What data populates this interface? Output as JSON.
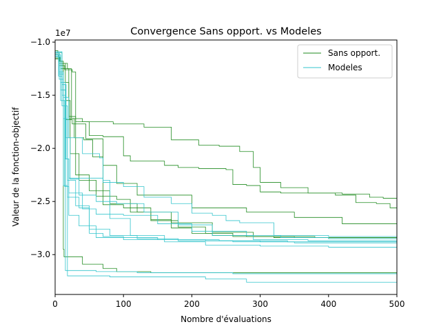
{
  "chart_data": {
    "type": "line",
    "title": "Convergence Sans opport. vs Modeles",
    "xlabel": "Nombre d'évaluations",
    "ylabel": "Valeur de la fonction-objectif",
    "y_offset_label": "1e7",
    "xlim": [
      0,
      500
    ],
    "ylim": [
      -3.375,
      -0.98
    ],
    "xticks": [
      0,
      100,
      200,
      300,
      400,
      500
    ],
    "xtick_labels": [
      "0",
      "100",
      "200",
      "300",
      "400",
      "500"
    ],
    "yticks": [
      -1.0,
      -1.5,
      -2.0,
      -2.5,
      -3.0
    ],
    "ytick_labels": [
      "−1.0",
      "−1.5",
      "−2.0",
      "−2.5",
      "−3.0"
    ],
    "legend_position": "top-right",
    "colors": {
      "sans": "#1e8a1e",
      "modeles": "#31c4cc"
    },
    "series": [
      {
        "group": "sans",
        "name": "Sans opport.",
        "points": [
          [
            0,
            -1.12
          ],
          [
            5,
            -1.18
          ],
          [
            10,
            -1.45
          ],
          [
            15,
            -1.73
          ],
          [
            25,
            -1.77
          ],
          [
            45,
            -1.91
          ],
          [
            70,
            -2.16
          ],
          [
            90,
            -2.33
          ],
          [
            120,
            -2.44
          ],
          [
            200,
            -2.56
          ],
          [
            280,
            -2.6
          ],
          [
            350,
            -2.65
          ],
          [
            420,
            -2.71
          ],
          [
            500,
            -2.83
          ]
        ]
      },
      {
        "group": "sans",
        "name": "Sans opport.",
        "points": [
          [
            0,
            -1.1
          ],
          [
            6,
            -1.22
          ],
          [
            12,
            -1.38
          ],
          [
            20,
            -1.72
          ],
          [
            40,
            -1.75
          ],
          [
            85,
            -1.77
          ],
          [
            130,
            -1.8
          ],
          [
            170,
            -1.92
          ],
          [
            210,
            -1.97
          ],
          [
            240,
            -1.98
          ],
          [
            270,
            -2.03
          ],
          [
            290,
            -2.18
          ],
          [
            300,
            -2.32
          ],
          [
            330,
            -2.37
          ],
          [
            370,
            -2.42
          ],
          [
            410,
            -2.44
          ],
          [
            440,
            -2.51
          ],
          [
            470,
            -2.52
          ],
          [
            490,
            -2.56
          ],
          [
            500,
            -2.56
          ]
        ]
      },
      {
        "group": "sans",
        "name": "Sans opport.",
        "points": [
          [
            0,
            -1.15
          ],
          [
            8,
            -1.22
          ],
          [
            14,
            -1.26
          ],
          [
            25,
            -1.28
          ],
          [
            30,
            -1.75
          ],
          [
            50,
            -1.88
          ],
          [
            70,
            -1.89
          ],
          [
            100,
            -2.07
          ],
          [
            110,
            -2.12
          ],
          [
            160,
            -2.16
          ],
          [
            180,
            -2.18
          ],
          [
            210,
            -2.19
          ],
          [
            250,
            -2.2
          ],
          [
            260,
            -2.34
          ],
          [
            280,
            -2.35
          ],
          [
            300,
            -2.41
          ],
          [
            330,
            -2.42
          ],
          [
            400,
            -2.42
          ],
          [
            420,
            -2.43
          ],
          [
            460,
            -2.46
          ],
          [
            480,
            -2.47
          ],
          [
            500,
            -2.53
          ]
        ]
      },
      {
        "group": "sans",
        "name": "Sans opport.",
        "points": [
          [
            0,
            -1.08
          ],
          [
            4,
            -1.1
          ],
          [
            10,
            -1.2
          ],
          [
            18,
            -1.25
          ],
          [
            24,
            -1.72
          ],
          [
            28,
            -1.9
          ],
          [
            42,
            -1.92
          ],
          [
            55,
            -2.08
          ],
          [
            70,
            -2.53
          ],
          [
            100,
            -2.56
          ],
          [
            140,
            -2.67
          ],
          [
            170,
            -2.75
          ],
          [
            200,
            -2.8
          ],
          [
            230,
            -2.82
          ],
          [
            280,
            -2.83
          ],
          [
            350,
            -2.84
          ],
          [
            500,
            -2.85
          ]
        ]
      },
      {
        "group": "sans",
        "name": "Sans opport.",
        "points": [
          [
            0,
            -1.11
          ],
          [
            6,
            -1.2
          ],
          [
            15,
            -1.55
          ],
          [
            22,
            -2.05
          ],
          [
            35,
            -2.3
          ],
          [
            60,
            -2.45
          ],
          [
            90,
            -2.48
          ],
          [
            110,
            -2.6
          ],
          [
            140,
            -2.68
          ],
          [
            180,
            -2.74
          ],
          [
            220,
            -2.8
          ],
          [
            260,
            -2.83
          ],
          [
            320,
            -2.84
          ],
          [
            400,
            -2.85
          ],
          [
            500,
            -2.86
          ]
        ]
      },
      {
        "group": "sans",
        "name": "Sans opport.",
        "points": [
          [
            0,
            -1.14
          ],
          [
            7,
            -1.18
          ],
          [
            12,
            -2.95
          ],
          [
            13,
            -3.02
          ],
          [
            30,
            -3.02
          ],
          [
            40,
            -3.09
          ],
          [
            70,
            -3.13
          ],
          [
            90,
            -3.16
          ],
          [
            140,
            -3.17
          ],
          [
            190,
            -3.17
          ],
          [
            300,
            -3.17
          ],
          [
            400,
            -3.17
          ],
          [
            500,
            -3.18
          ]
        ]
      },
      {
        "group": "sans",
        "name": "Sans opport.",
        "points": [
          [
            0,
            -1.16
          ],
          [
            8,
            -1.25
          ],
          [
            20,
            -1.7
          ],
          [
            30,
            -2.25
          ],
          [
            50,
            -2.4
          ],
          [
            80,
            -2.52
          ],
          [
            120,
            -2.6
          ],
          [
            170,
            -2.7
          ],
          [
            230,
            -2.79
          ],
          [
            290,
            -2.83
          ],
          [
            380,
            -2.84
          ],
          [
            500,
            -2.84
          ]
        ]
      },
      {
        "group": "modeles",
        "name": "Modeles",
        "points": [
          [
            0,
            -1.13
          ],
          [
            5,
            -1.32
          ],
          [
            10,
            -1.6
          ],
          [
            14,
            -2.36
          ],
          [
            20,
            -2.42
          ],
          [
            40,
            -2.57
          ],
          [
            60,
            -2.62
          ],
          [
            100,
            -2.63
          ],
          [
            150,
            -2.71
          ],
          [
            200,
            -2.78
          ],
          [
            280,
            -2.82
          ],
          [
            330,
            -2.84
          ],
          [
            400,
            -2.85
          ],
          [
            500,
            -2.86
          ]
        ]
      },
      {
        "group": "modeles",
        "name": "Modeles",
        "points": [
          [
            0,
            -1.1
          ],
          [
            6,
            -1.3
          ],
          [
            12,
            -1.72
          ],
          [
            18,
            -2.3
          ],
          [
            30,
            -2.54
          ],
          [
            50,
            -2.76
          ],
          [
            80,
            -2.82
          ],
          [
            120,
            -2.85
          ],
          [
            180,
            -2.87
          ],
          [
            260,
            -2.88
          ],
          [
            350,
            -2.89
          ],
          [
            500,
            -2.89
          ]
        ]
      },
      {
        "group": "modeles",
        "name": "Modeles",
        "points": [
          [
            0,
            -1.12
          ],
          [
            8,
            -1.45
          ],
          [
            15,
            -1.6
          ],
          [
            18,
            -3.2
          ],
          [
            30,
            -3.2
          ],
          [
            80,
            -3.21
          ],
          [
            160,
            -3.21
          ],
          [
            220,
            -3.23
          ],
          [
            280,
            -3.26
          ],
          [
            400,
            -3.26
          ],
          [
            500,
            -3.26
          ]
        ]
      },
      {
        "group": "modeles",
        "name": "Modeles",
        "points": [
          [
            0,
            -1.09
          ],
          [
            10,
            -1.4
          ],
          [
            16,
            -2.1
          ],
          [
            20,
            -2.28
          ],
          [
            70,
            -2.32
          ],
          [
            100,
            -2.36
          ],
          [
            130,
            -2.46
          ],
          [
            170,
            -2.52
          ],
          [
            200,
            -2.61
          ],
          [
            230,
            -2.63
          ],
          [
            250,
            -2.68
          ],
          [
            270,
            -2.7
          ],
          [
            320,
            -2.82
          ],
          [
            400,
            -2.83
          ],
          [
            500,
            -2.83
          ]
        ]
      },
      {
        "group": "modeles",
        "name": "Modeles",
        "points": [
          [
            0,
            -1.14
          ],
          [
            8,
            -1.55
          ],
          [
            14,
            -2.1
          ],
          [
            20,
            -2.63
          ],
          [
            35,
            -2.73
          ],
          [
            60,
            -2.84
          ],
          [
            100,
            -2.86
          ],
          [
            160,
            -2.88
          ],
          [
            220,
            -2.91
          ],
          [
            300,
            -2.92
          ],
          [
            400,
            -2.93
          ],
          [
            500,
            -2.93
          ]
        ]
      },
      {
        "group": "modeles",
        "name": "Modeles",
        "points": [
          [
            0,
            -1.11
          ],
          [
            6,
            -1.35
          ],
          [
            12,
            -2.35
          ],
          [
            18,
            -2.46
          ],
          [
            35,
            -2.56
          ],
          [
            50,
            -2.8
          ],
          [
            70,
            -2.83
          ],
          [
            100,
            -2.84
          ],
          [
            150,
            -2.86
          ],
          [
            220,
            -2.87
          ],
          [
            300,
            -2.88
          ],
          [
            400,
            -2.88
          ],
          [
            500,
            -2.88
          ]
        ]
      },
      {
        "group": "modeles",
        "name": "Modeles",
        "points": [
          [
            0,
            -1.12
          ],
          [
            8,
            -1.38
          ],
          [
            15,
            -1.9
          ],
          [
            22,
            -2.29
          ],
          [
            35,
            -2.44
          ],
          [
            60,
            -2.5
          ],
          [
            90,
            -2.52
          ],
          [
            130,
            -2.6
          ],
          [
            180,
            -2.72
          ],
          [
            230,
            -2.82
          ],
          [
            290,
            -2.86
          ],
          [
            370,
            -2.87
          ],
          [
            500,
            -2.88
          ]
        ]
      },
      {
        "group": "modeles",
        "name": "Modeles",
        "points": [
          [
            0,
            -1.1
          ],
          [
            10,
            -1.5
          ],
          [
            15,
            -3.15
          ],
          [
            30,
            -3.15
          ],
          [
            60,
            -3.16
          ],
          [
            120,
            -3.17
          ],
          [
            180,
            -3.17
          ],
          [
            260,
            -3.18
          ],
          [
            350,
            -3.18
          ],
          [
            500,
            -3.18
          ]
        ]
      },
      {
        "group": "modeles",
        "name": "Modeles",
        "points": [
          [
            0,
            -1.13
          ],
          [
            6,
            -1.28
          ],
          [
            12,
            -1.52
          ],
          [
            20,
            -1.9
          ],
          [
            40,
            -2.05
          ],
          [
            65,
            -2.09
          ],
          [
            70,
            -2.3
          ],
          [
            80,
            -2.66
          ],
          [
            110,
            -2.82
          ],
          [
            160,
            -2.86
          ],
          [
            240,
            -2.87
          ],
          [
            340,
            -2.88
          ],
          [
            500,
            -2.88
          ]
        ]
      }
    ],
    "legend": [
      {
        "group": "sans",
        "label": "Sans opport."
      },
      {
        "group": "modeles",
        "label": "Modeles"
      }
    ]
  }
}
